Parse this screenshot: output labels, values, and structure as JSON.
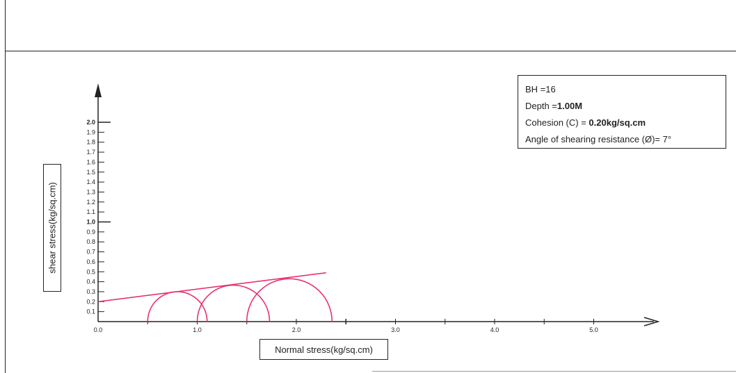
{
  "info": {
    "bh": "BH =16",
    "depth_prefix": "Depth =",
    "depth_value": "1.00M",
    "cohesion_prefix": "Cohesion (C) =",
    "cohesion_value": "0.20kg/sq.cm",
    "angle": "Angle of shearing resistance (Ø)= 7°"
  },
  "chart_data": {
    "type": "line",
    "title": "",
    "xlabel": "Normal stress(kg/sq.cm)",
    "ylabel": "shear stress(kg/sq.cm)",
    "xlim": [
      0,
      5.5
    ],
    "ylim": [
      0,
      2.0
    ],
    "x_ticks": [
      "0.0",
      "1.0",
      "2.0",
      "3.0",
      "4.0",
      "5.0"
    ],
    "y_ticks": [
      "0.1",
      "0.2",
      "0.3",
      "0.4",
      "0.5",
      "0.6",
      "0.7",
      "0.8",
      "0.9",
      "1.0",
      "1.1",
      "1.2",
      "1.3",
      "1.4",
      "1.5",
      "1.6",
      "1.7",
      "1.8",
      "1.9",
      "2.0"
    ],
    "y_ticks_bold": [
      "1.0",
      "2.0"
    ],
    "mohr_circles": [
      {
        "sigma3": 0.5,
        "sigma1": 1.1
      },
      {
        "sigma3": 1.0,
        "sigma1": 1.73
      },
      {
        "sigma3": 1.5,
        "sigma1": 2.36
      }
    ],
    "failure_envelope": {
      "x": [
        0.0,
        2.3
      ],
      "y": [
        0.2,
        0.49
      ]
    },
    "cohesion": 0.2,
    "phi_deg": 7,
    "curve_color": "#e8326f",
    "axis_color": "#222222"
  }
}
